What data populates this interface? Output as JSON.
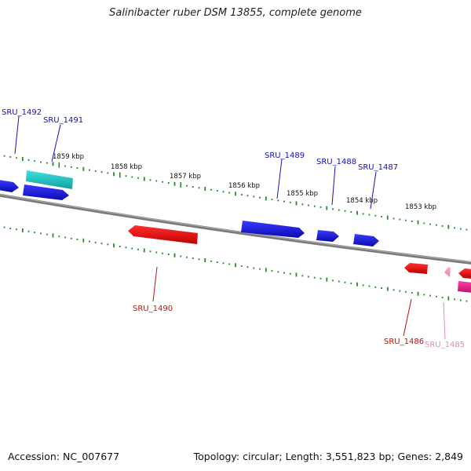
{
  "title": "Salinibacter ruber DSM 13855, complete genome",
  "footer": {
    "accession": "Accession: NC_007677",
    "summary": "Topology: circular; Length: 3,551,823 bp; Genes: 2,849"
  },
  "colors": {
    "backbone": "#808080",
    "tick": "#2a8a2a",
    "forward_gene": "#1010e0",
    "reverse_gene": "#e01010",
    "rna_gene": "#20c0c0",
    "pink_gene": "#f080b0",
    "magenta_gene": "#e0208a"
  },
  "scale": {
    "unit": "kbp",
    "major_ticks": [
      {
        "kbp": 1859,
        "label": "1859 kbp"
      },
      {
        "kbp": 1858,
        "label": "1858 kbp"
      },
      {
        "kbp": 1857,
        "label": "1857 kbp"
      },
      {
        "kbp": 1856,
        "label": "1856 kbp"
      },
      {
        "kbp": 1855,
        "label": "1855 kbp"
      },
      {
        "kbp": 1854,
        "label": "1854 kbp"
      },
      {
        "kbp": 1853,
        "label": "1853 kbp"
      }
    ]
  },
  "genes": [
    {
      "id": "SRU_1492",
      "label": "SRU_1492",
      "strand": "forward",
      "kind": "forward_gene"
    },
    {
      "id": "SRU_1491",
      "label": "SRU_1491",
      "strand": "forward",
      "kind": "rna_gene"
    },
    {
      "id": "SRU_1489",
      "label": "SRU_1489",
      "strand": "forward",
      "kind": "forward_gene"
    },
    {
      "id": "SRU_1488",
      "label": "SRU_1488",
      "strand": "forward",
      "kind": "forward_gene"
    },
    {
      "id": "SRU_1487",
      "label": "SRU_1487",
      "strand": "forward",
      "kind": "forward_gene"
    },
    {
      "id": "SRU_1490",
      "label": "SRU_1490",
      "strand": "reverse",
      "kind": "reverse_gene"
    },
    {
      "id": "SRU_1486",
      "label": "SRU_1486",
      "strand": "reverse",
      "kind": "reverse_gene"
    },
    {
      "id": "SRU_1485",
      "label": "SRU_1485",
      "strand": "reverse",
      "kind": "pink_gene"
    }
  ]
}
